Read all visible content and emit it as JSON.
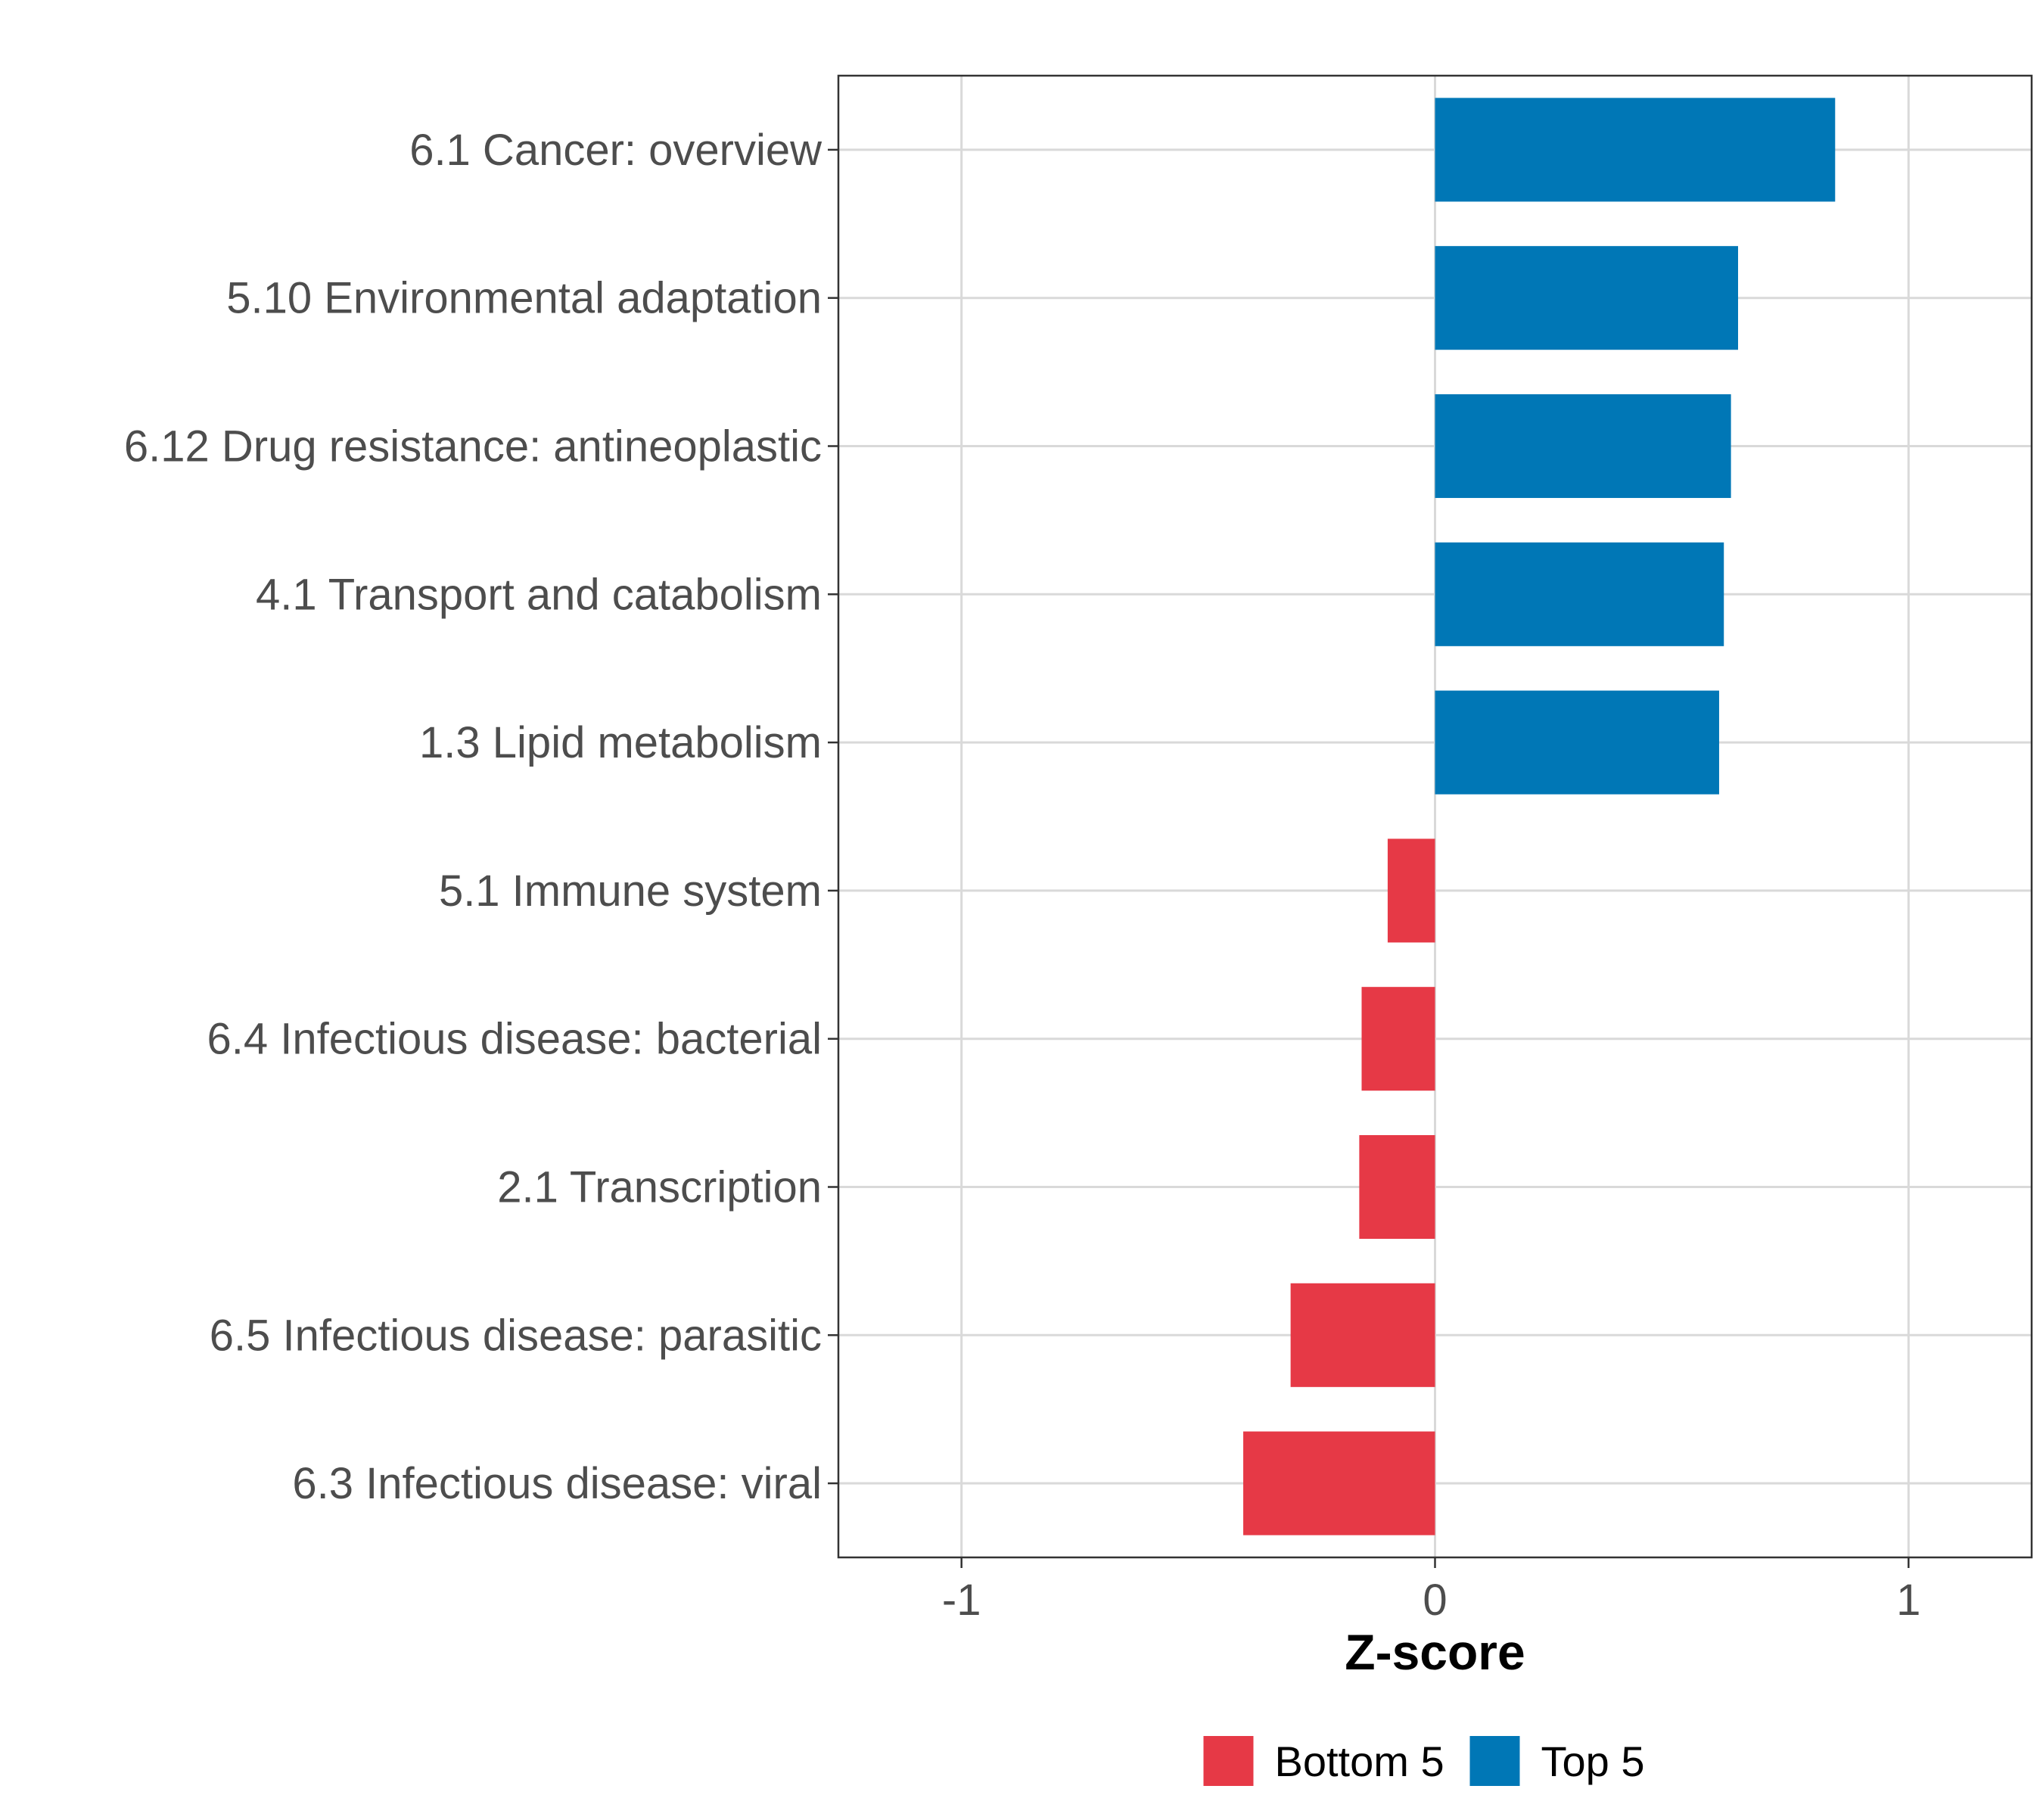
{
  "chart_data": {
    "type": "bar",
    "orientation": "horizontal",
    "xlabel": "Z-score",
    "ylabel": "",
    "xlim": [
      -1.26,
      1.26
    ],
    "xticks": [
      -1,
      0,
      1
    ],
    "xtick_labels": [
      "-1",
      "0",
      "1"
    ],
    "grid": true,
    "legend_position": "bottom",
    "categories": [
      "6.1 Cancer: overview",
      "5.10 Environmental adaptation",
      "6.12 Drug resistance: antineoplastic",
      "4.1 Transport and catabolism",
      "1.3 Lipid metabolism",
      "5.1 Immune system",
      "6.4 Infectious disease: bacterial",
      "2.1 Transcription",
      "6.5 Infectious disease: parasitic",
      "6.3 Infectious disease: viral"
    ],
    "values": [
      0.845,
      0.64,
      0.625,
      0.61,
      0.6,
      -0.1,
      -0.155,
      -0.16,
      -0.305,
      -0.405
    ],
    "groups": [
      "Top 5",
      "Top 5",
      "Top 5",
      "Top 5",
      "Top 5",
      "Bottom 5",
      "Bottom 5",
      "Bottom 5",
      "Bottom 5",
      "Bottom 5"
    ],
    "legend": [
      {
        "name": "Bottom 5",
        "color": "#e63946"
      },
      {
        "name": "Top 5",
        "color": "#0077b6"
      }
    ]
  }
}
